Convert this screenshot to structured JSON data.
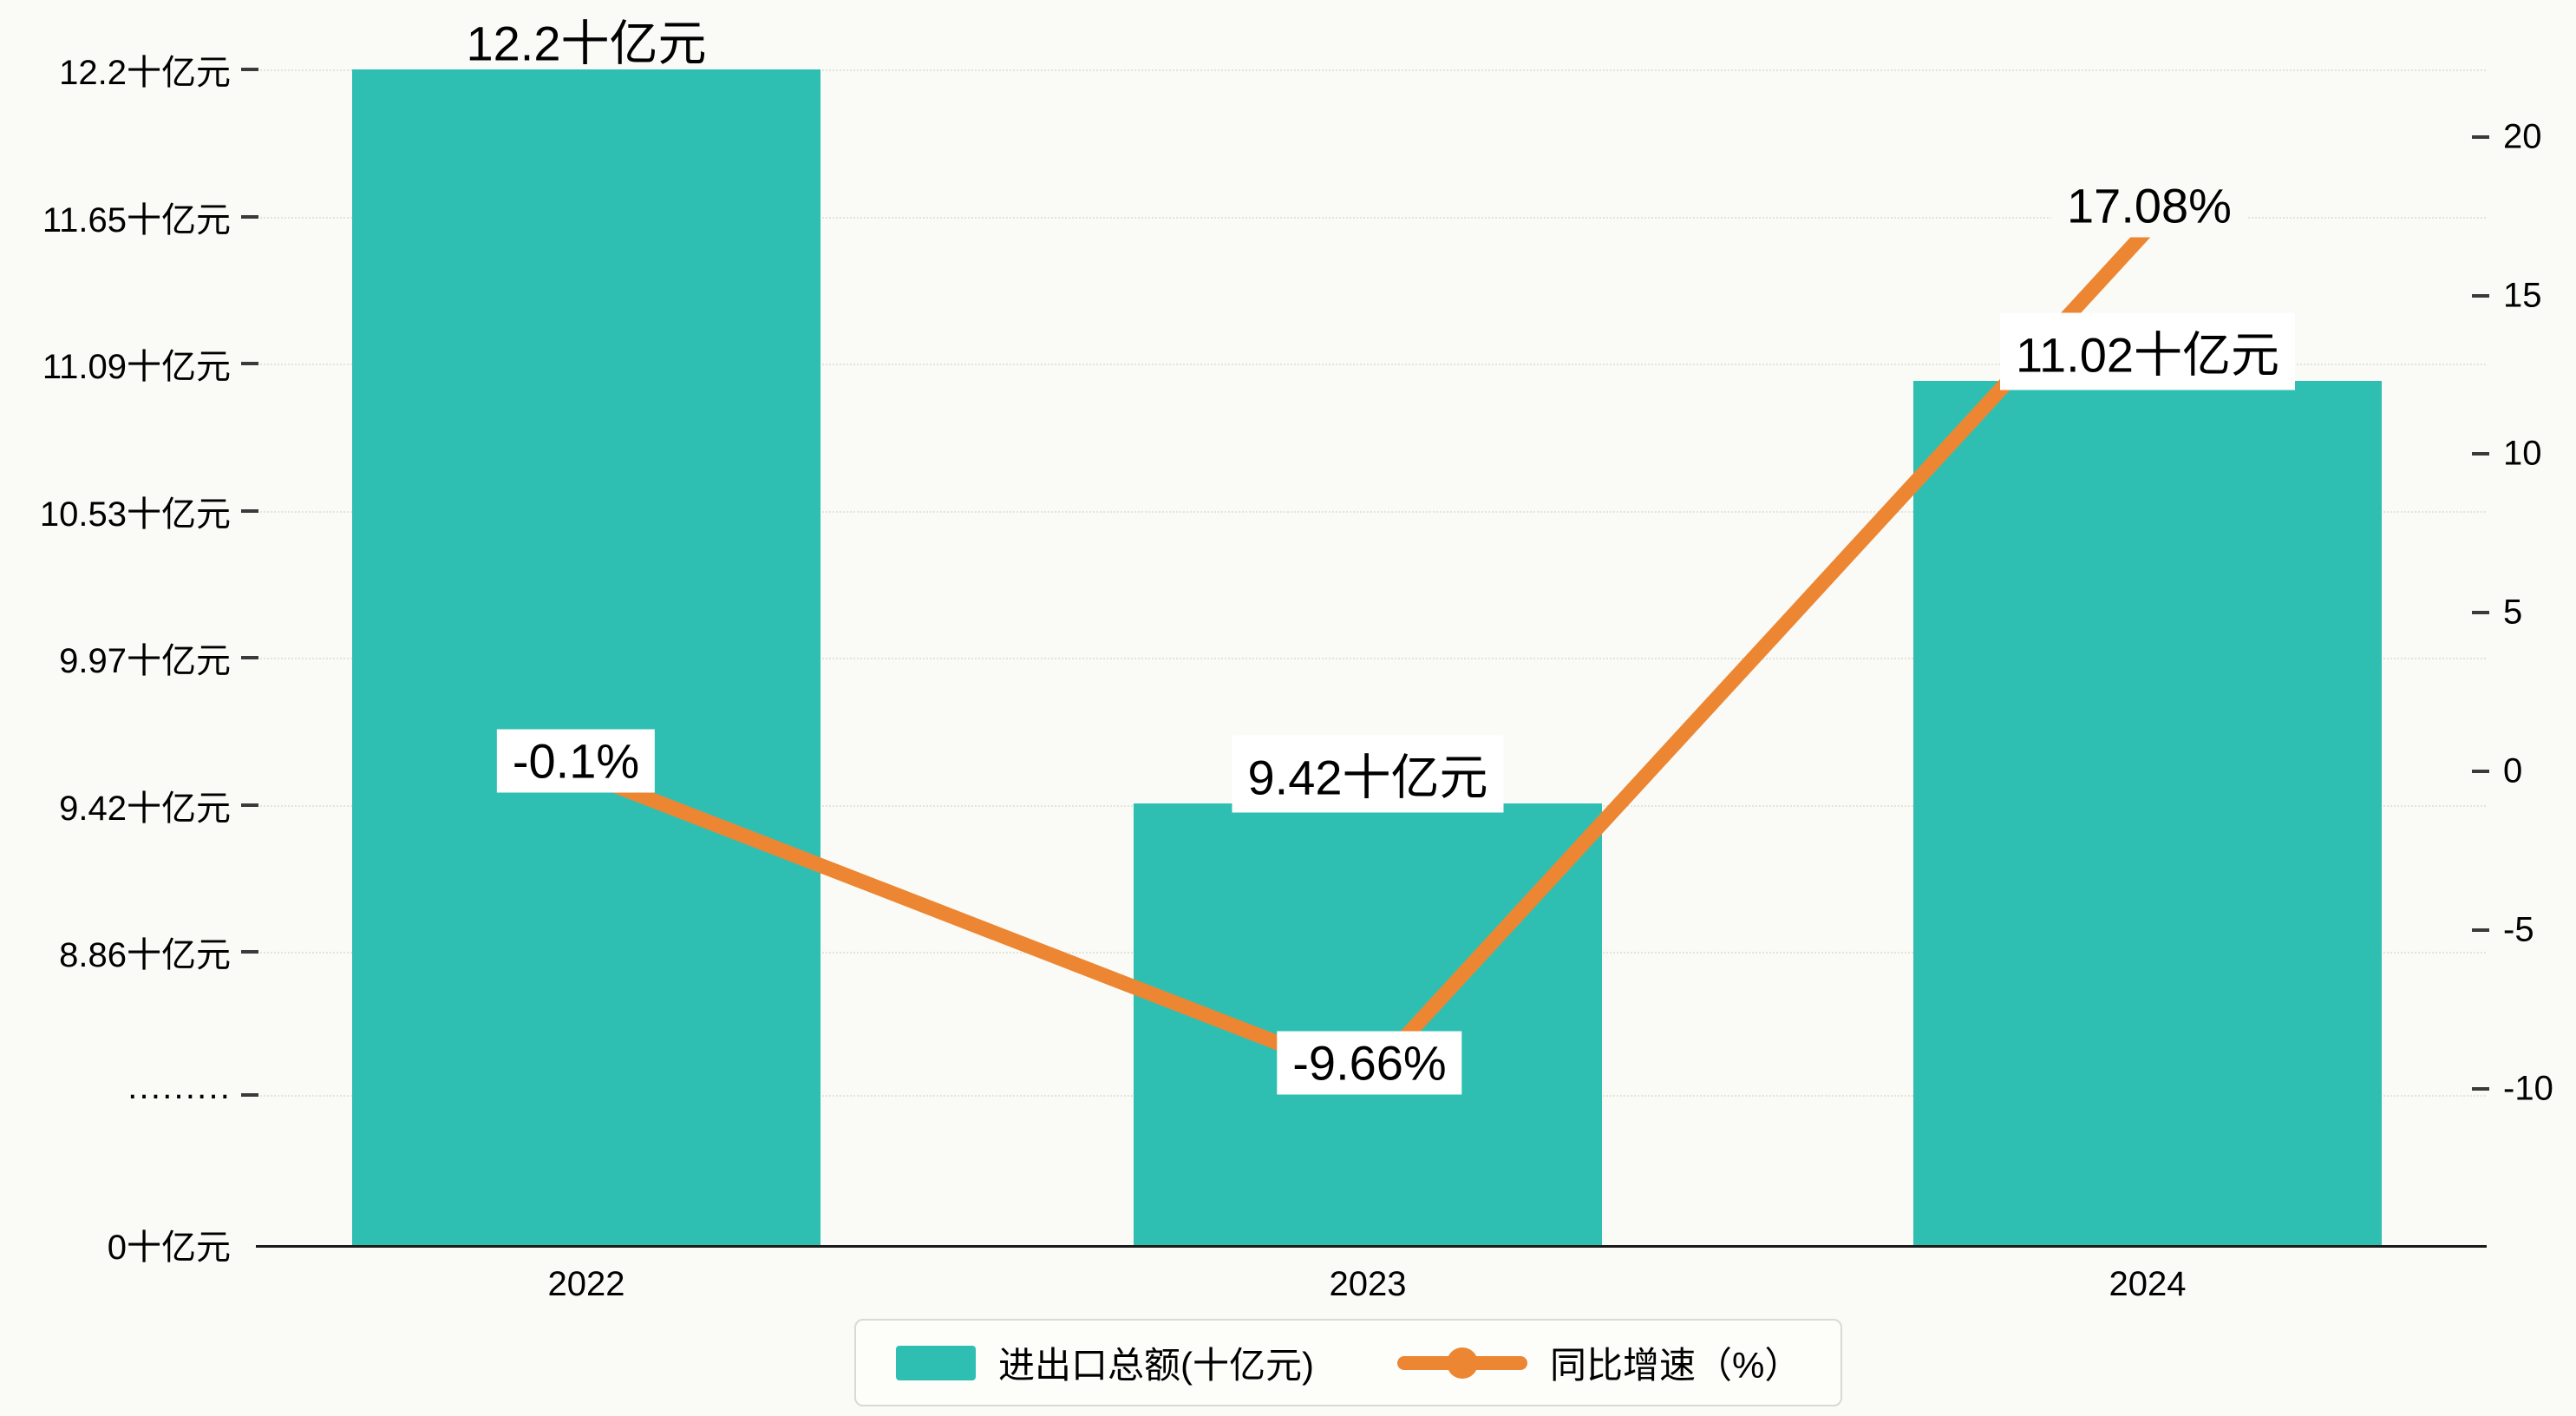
{
  "background": "#FAFAF6",
  "chart_data": {
    "type": "bar+line",
    "title": "",
    "categories": [
      "2022",
      "2023",
      "2024"
    ],
    "series": [
      {
        "name": "进出口总额(十亿元)",
        "type": "bar",
        "color": "#2FBFB2",
        "axis": "left",
        "values": [
          12.2,
          9.42,
          11.02
        ],
        "data_labels": [
          "12.2十亿元",
          "9.42十亿元",
          "11.02十亿元"
        ]
      },
      {
        "name": "同比增速（%）",
        "type": "line",
        "color": "#EC8633",
        "axis": "right",
        "values": [
          -0.1,
          -9.66,
          17.08
        ],
        "data_labels": [
          "-0.1%",
          "-9.66%",
          "17.08%"
        ]
      }
    ],
    "left_axis": {
      "unit": "十亿元",
      "tick_labels": [
        "12.2十亿元",
        "11.65十亿元",
        "11.09十亿元",
        "10.53十亿元",
        "9.97十亿元",
        "9.42十亿元",
        "8.86十亿元",
        "·········",
        "0十亿元"
      ],
      "tick_values": [
        12.2,
        11.65,
        11.09,
        10.53,
        9.97,
        9.42,
        8.86,
        null,
        0
      ],
      "axis_break_between": [
        8.86,
        0
      ]
    },
    "right_axis": {
      "tick_labels": [
        "20",
        "15",
        "10",
        "5",
        "0",
        "-5",
        "-10"
      ],
      "ticks": [
        20,
        15,
        10,
        5,
        0,
        -5,
        -10
      ],
      "range": [
        -10,
        20
      ]
    },
    "grid": {
      "horizontal": true,
      "style": "dotted"
    },
    "legend": {
      "position": "bottom-center",
      "items": [
        {
          "label": "进出口总额(十亿元)",
          "series": "bar",
          "color": "#2FBFB2"
        },
        {
          "label": "同比增速（%）",
          "series": "line",
          "color": "#EC8633"
        }
      ]
    }
  }
}
